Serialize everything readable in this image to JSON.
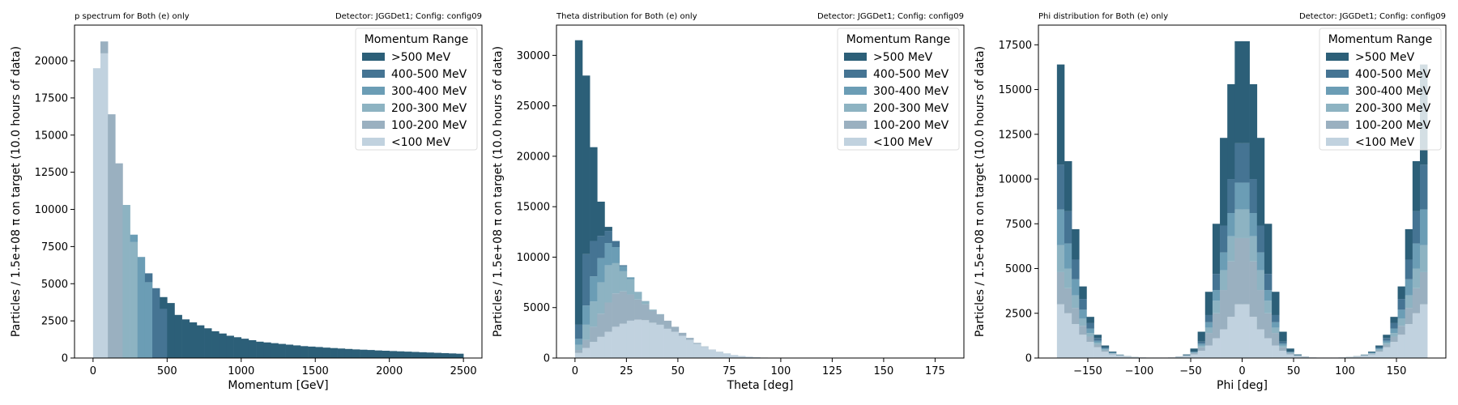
{
  "colors": {
    "lt100": "#c1d2df",
    "r100_200": "#9ab0c0",
    "r200_300": "#8db3c2",
    "r300_400": "#6b9db5",
    "r400_500": "#457493",
    "gt500": "#2c5f78"
  },
  "chart_data": [
    {
      "type": "bar",
      "stacked": true,
      "title": "p spectrum for Both (e) only",
      "title_right": "Detector: JGGDet1; Config: config09",
      "xlabel": "Momentum [GeV]",
      "ylabel": "Particles / 1.5e+08 π on target (10.0 hours of data)",
      "xlim": [
        -125,
        2625
      ],
      "ylim": [
        0,
        22400
      ],
      "xticks": [
        0,
        500,
        1000,
        1500,
        2000,
        2500
      ],
      "yticks": [
        0,
        2500,
        5000,
        7500,
        10000,
        12500,
        15000,
        17500,
        20000
      ],
      "grid": false,
      "legend": {
        "title": "Momentum Range",
        "placement": "top-right",
        "entries": [
          ">500 MeV",
          "400-500 MeV",
          "300-400 MeV",
          "200-300 MeV",
          "100-200 MeV",
          "<100 MeV"
        ]
      },
      "bin_edges_start": 0,
      "bin_width": 50,
      "series": [
        {
          "name": "<100 MeV",
          "color_key": "lt100",
          "values": [
            19500,
            20500,
            0,
            0,
            0,
            0,
            0,
            0,
            0,
            0,
            0,
            0,
            0,
            0,
            0,
            0,
            0,
            0,
            0,
            0,
            0,
            0,
            0,
            0,
            0,
            0,
            0,
            0,
            0,
            0,
            0,
            0,
            0,
            0,
            0,
            0,
            0,
            0,
            0,
            0,
            0,
            0,
            0,
            0,
            0,
            0,
            0,
            0,
            0,
            0
          ]
        },
        {
          "name": "100-200 MeV",
          "color_key": "r100_200",
          "values": [
            0,
            800,
            16400,
            13100,
            0,
            0,
            0,
            0,
            0,
            0,
            0,
            0,
            0,
            0,
            0,
            0,
            0,
            0,
            0,
            0,
            0,
            0,
            0,
            0,
            0,
            0,
            0,
            0,
            0,
            0,
            0,
            0,
            0,
            0,
            0,
            0,
            0,
            0,
            0,
            0,
            0,
            0,
            0,
            0,
            0,
            0,
            0,
            0,
            0,
            0
          ]
        },
        {
          "name": "200-300 MeV",
          "color_key": "r200_300",
          "values": [
            0,
            0,
            0,
            0,
            10300,
            7800,
            0,
            0,
            0,
            0,
            0,
            0,
            0,
            0,
            0,
            0,
            0,
            0,
            0,
            0,
            0,
            0,
            0,
            0,
            0,
            0,
            0,
            0,
            0,
            0,
            0,
            0,
            0,
            0,
            0,
            0,
            0,
            0,
            0,
            0,
            0,
            0,
            0,
            0,
            0,
            0,
            0,
            0,
            0,
            0
          ]
        },
        {
          "name": "300-400 MeV",
          "color_key": "r300_400",
          "values": [
            0,
            0,
            0,
            0,
            0,
            500,
            6800,
            5100,
            0,
            0,
            0,
            0,
            0,
            0,
            0,
            0,
            0,
            0,
            0,
            0,
            0,
            0,
            0,
            0,
            0,
            0,
            0,
            0,
            0,
            0,
            0,
            0,
            0,
            0,
            0,
            0,
            0,
            0,
            0,
            0,
            0,
            0,
            0,
            0,
            0,
            0,
            0,
            0,
            0,
            0
          ]
        },
        {
          "name": "400-500 MeV",
          "color_key": "r400_500",
          "values": [
            0,
            0,
            0,
            0,
            0,
            0,
            0,
            600,
            4700,
            3300,
            0,
            0,
            0,
            0,
            0,
            0,
            0,
            0,
            0,
            0,
            0,
            0,
            0,
            0,
            0,
            0,
            0,
            0,
            0,
            0,
            0,
            0,
            0,
            0,
            0,
            0,
            0,
            0,
            0,
            0,
            0,
            0,
            0,
            0,
            0,
            0,
            0,
            0,
            0,
            0
          ]
        },
        {
          "name": ">500 MeV",
          "color_key": "gt500",
          "values": [
            0,
            0,
            0,
            0,
            0,
            0,
            0,
            0,
            0,
            800,
            3700,
            2900,
            2600,
            2400,
            2200,
            2000,
            1800,
            1650,
            1500,
            1400,
            1300,
            1200,
            1100,
            1050,
            1000,
            950,
            900,
            850,
            800,
            770,
            740,
            700,
            670,
            640,
            610,
            580,
            560,
            540,
            510,
            490,
            470,
            450,
            430,
            410,
            390,
            370,
            350,
            330,
            310,
            290
          ]
        }
      ]
    },
    {
      "type": "bar",
      "stacked": true,
      "title": "Theta distribution for Both (e) only",
      "title_right": "Detector: JGGDet1; Config: config09",
      "xlabel": "Theta [deg]",
      "ylabel": "Particles / 1.5e+08 π on target (10.0 hours of data)",
      "xlim": [
        -9,
        189
      ],
      "ylim": [
        0,
        33000
      ],
      "xticks": [
        0,
        25,
        50,
        75,
        100,
        125,
        150,
        175
      ],
      "yticks": [
        0,
        5000,
        10000,
        15000,
        20000,
        25000,
        30000
      ],
      "grid": false,
      "legend": {
        "title": "Momentum Range",
        "placement": "top-right",
        "entries": [
          ">500 MeV",
          "400-500 MeV",
          "300-400 MeV",
          "200-300 MeV",
          "100-200 MeV",
          "<100 MeV"
        ]
      },
      "bin_edges_start": 0,
      "bin_width": 3.6,
      "series": [
        {
          "name": "<100 MeV",
          "color_key": "lt100",
          "values": [
            500,
            1000,
            1600,
            2100,
            2600,
            3100,
            3400,
            3700,
            3800,
            3750,
            3500,
            3300,
            2900,
            2600,
            2200,
            1800,
            1400,
            1100,
            800,
            600,
            450,
            300,
            200,
            130,
            80,
            50,
            30,
            20,
            15,
            10,
            7,
            5,
            3,
            2,
            0,
            0,
            0,
            0,
            0,
            0,
            0,
            0,
            0,
            0,
            0,
            0,
            0,
            0,
            0,
            0
          ]
        },
        {
          "name": "100-200 MeV",
          "color_key": "r100_200",
          "values": [
            300,
            800,
            1500,
            2300,
            2900,
            3300,
            3200,
            2600,
            2000,
            1600,
            1200,
            1000,
            800,
            500,
            300,
            200,
            100,
            50,
            30,
            20,
            10,
            0,
            0,
            0,
            0,
            0,
            0,
            0,
            0,
            0,
            0,
            0,
            0,
            0,
            0,
            0,
            0,
            0,
            0,
            0,
            0,
            0,
            0,
            0,
            0,
            0,
            0,
            0,
            0,
            0
          ]
        },
        {
          "name": "200-300 MeV",
          "color_key": "r200_300",
          "values": [
            500,
            1500,
            2500,
            3100,
            3700,
            3000,
            2000,
            1500,
            700,
            300,
            100,
            50,
            0,
            0,
            0,
            0,
            0,
            0,
            0,
            0,
            0,
            0,
            0,
            0,
            0,
            0,
            0,
            0,
            0,
            0,
            0,
            0,
            0,
            0,
            0,
            0,
            0,
            0,
            0,
            0,
            0,
            0,
            0,
            0,
            0,
            0,
            0,
            0,
            0,
            0
          ]
        },
        {
          "name": "300-400 MeV",
          "color_key": "r300_400",
          "values": [
            600,
            1900,
            2500,
            2400,
            2200,
            1600,
            500,
            200,
            50,
            0,
            0,
            0,
            0,
            0,
            0,
            0,
            0,
            0,
            0,
            0,
            0,
            0,
            0,
            0,
            0,
            0,
            0,
            0,
            0,
            0,
            0,
            0,
            0,
            0,
            0,
            0,
            0,
            0,
            0,
            0,
            0,
            0,
            0,
            0,
            0,
            0,
            0,
            0,
            0,
            0
          ]
        },
        {
          "name": "400-500 MeV",
          "color_key": "r400_500",
          "values": [
            1400,
            5100,
            3500,
            2200,
            1200,
            600,
            100,
            0,
            0,
            0,
            0,
            0,
            0,
            0,
            0,
            0,
            0,
            0,
            0,
            0,
            0,
            0,
            0,
            0,
            0,
            0,
            0,
            0,
            0,
            0,
            0,
            0,
            0,
            0,
            0,
            0,
            0,
            0,
            0,
            0,
            0,
            0,
            0,
            0,
            0,
            0,
            0,
            0,
            0,
            0
          ]
        },
        {
          "name": ">500 MeV",
          "color_key": "gt500",
          "values": [
            28200,
            17700,
            9300,
            3400,
            400,
            0,
            0,
            0,
            0,
            0,
            0,
            0,
            0,
            0,
            0,
            0,
            0,
            0,
            0,
            0,
            0,
            0,
            0,
            0,
            0,
            0,
            0,
            0,
            0,
            0,
            0,
            0,
            0,
            0,
            0,
            0,
            0,
            0,
            0,
            0,
            0,
            0,
            0,
            0,
            0,
            0,
            0,
            0,
            0,
            0
          ]
        }
      ]
    },
    {
      "type": "bar",
      "stacked": true,
      "title": "Phi distribution for Both (e) only",
      "title_right": "Detector: JGGDet1; Config: config09",
      "xlabel": "Phi [deg]",
      "ylabel": "Particles / 1.5e+08 π on target (10.0 hours of data)",
      "xlim": [
        -198,
        198
      ],
      "ylim": [
        0,
        18600
      ],
      "xticks": [
        -150,
        -100,
        -50,
        0,
        50,
        100,
        150
      ],
      "yticks": [
        0,
        2500,
        5000,
        7500,
        10000,
        12500,
        15000,
        17500
      ],
      "grid": false,
      "legend": {
        "title": "Momentum Range",
        "placement": "top-right",
        "entries": [
          ">500 MeV",
          "400-500 MeV",
          "300-400 MeV",
          "200-300 MeV",
          "100-200 MeV",
          "<100 MeV"
        ]
      },
      "bin_edges_start": -180,
      "bin_width": 7.2,
      "series": [
        {
          "name": "<100 MeV",
          "color_key": "lt100",
          "values": [
            3000,
            2500,
            1900,
            1300,
            900,
            600,
            350,
            200,
            120,
            80,
            50,
            40,
            30,
            30,
            30,
            40,
            60,
            100,
            200,
            400,
            700,
            1100,
            1600,
            2300,
            3000,
            3000,
            2300,
            1600,
            1100,
            700,
            400,
            200,
            100,
            60,
            40,
            30,
            30,
            30,
            40,
            50,
            80,
            120,
            200,
            350,
            600,
            900,
            1300,
            1900,
            2500,
            3000
          ]
        },
        {
          "name": "100-200 MeV",
          "color_key": "r100_200",
          "values": [
            1800,
            1400,
            900,
            500,
            300,
            150,
            80,
            40,
            20,
            10,
            5,
            0,
            0,
            0,
            0,
            0,
            10,
            30,
            70,
            200,
            700,
            1400,
            2200,
            3100,
            3700,
            3700,
            3100,
            2200,
            1400,
            700,
            200,
            70,
            30,
            10,
            0,
            0,
            0,
            0,
            0,
            5,
            10,
            20,
            40,
            80,
            150,
            300,
            500,
            900,
            1400,
            1800
          ]
        },
        {
          "name": "200-300 MeV",
          "color_key": "r200_300",
          "values": [
            1500,
            1100,
            700,
            400,
            200,
            100,
            50,
            20,
            10,
            0,
            0,
            0,
            0,
            0,
            0,
            0,
            0,
            10,
            30,
            100,
            300,
            700,
            1100,
            1400,
            1600,
            1600,
            1400,
            1100,
            700,
            300,
            100,
            30,
            10,
            0,
            0,
            0,
            0,
            0,
            0,
            0,
            0,
            10,
            20,
            50,
            100,
            200,
            400,
            700,
            1100,
            1500
          ]
        },
        {
          "name": "300-400 MeV",
          "color_key": "r300_400",
          "values": [
            2000,
            1400,
            900,
            500,
            250,
            120,
            60,
            30,
            10,
            0,
            0,
            0,
            0,
            0,
            0,
            0,
            0,
            10,
            30,
            100,
            300,
            600,
            1000,
            1300,
            1500,
            1500,
            1300,
            1000,
            600,
            300,
            100,
            30,
            10,
            0,
            0,
            0,
            0,
            0,
            0,
            0,
            0,
            10,
            30,
            60,
            120,
            250,
            500,
            900,
            1400,
            2000
          ]
        },
        {
          "name": "400-500 MeV",
          "color_key": "r400_500",
          "values": [
            2500,
            1800,
            1100,
            600,
            300,
            150,
            70,
            30,
            10,
            0,
            0,
            0,
            0,
            0,
            0,
            0,
            0,
            10,
            30,
            120,
            400,
            900,
            1500,
            1900,
            2200,
            2200,
            1900,
            1500,
            900,
            400,
            120,
            30,
            10,
            0,
            0,
            0,
            0,
            0,
            0,
            0,
            0,
            10,
            30,
            70,
            150,
            300,
            600,
            1100,
            1800,
            2500
          ]
        },
        {
          "name": ">500 MeV",
          "color_key": "gt500",
          "values": [
            5600,
            2800,
            1700,
            700,
            350,
            180,
            90,
            40,
            20,
            10,
            5,
            0,
            0,
            0,
            0,
            0,
            10,
            40,
            170,
            550,
            1300,
            2800,
            4900,
            5300,
            5700,
            5700,
            5300,
            4900,
            2800,
            1300,
            550,
            170,
            40,
            10,
            0,
            0,
            0,
            0,
            0,
            5,
            10,
            20,
            40,
            90,
            180,
            350,
            700,
            1700,
            2800,
            5600
          ]
        }
      ]
    }
  ]
}
